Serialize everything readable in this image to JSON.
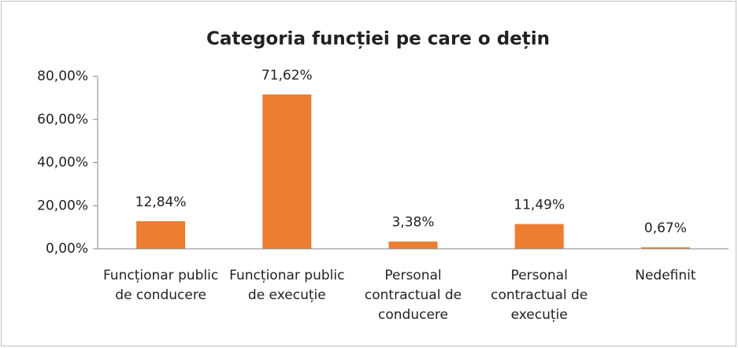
{
  "chart_data": {
    "type": "bar",
    "title": "Categoria funcției pe care o dețin",
    "categories": [
      "Funcționar public de conducere",
      "Funcționar public de execuție",
      "Personal contractual de conducere",
      "Personal contractual de execuție",
      "Nedefinit"
    ],
    "values": [
      12.84,
      71.62,
      3.38,
      11.49,
      0.67
    ],
    "value_labels": [
      "12,84%",
      "71,62%",
      "3,38%",
      "11,49%",
      "0,67%"
    ],
    "color": "#ed7d31",
    "ylim": [
      0,
      80
    ],
    "yticks": [
      {
        "value": 0,
        "label": "0,00%"
      },
      {
        "value": 20,
        "label": "20,00%"
      },
      {
        "value": 40,
        "label": "40,00%"
      },
      {
        "value": 60,
        "label": "60,00%"
      },
      {
        "value": 80,
        "label": "80,00%"
      }
    ],
    "grid": false
  }
}
